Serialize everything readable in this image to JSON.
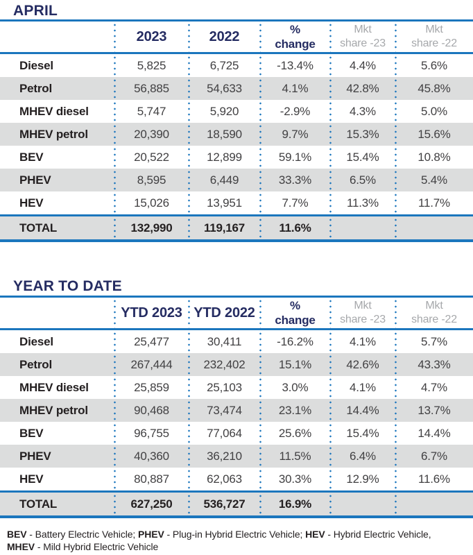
{
  "colors": {
    "navy": "#252c62",
    "blue": "#1b76bd",
    "stripe": "#dcdddd",
    "label": "#231f20",
    "value": "#414042",
    "muted": "#a6a8ab"
  },
  "tables_ui": {
    "april": {
      "title": "APRIL",
      "col1": "2023",
      "col2": "2022"
    },
    "ytd": {
      "title": "YEAR TO DATE",
      "col1": "YTD 2023",
      "col2": "YTD 2022"
    },
    "shared": {
      "pct1": "%",
      "pct2": "change",
      "mkt1": "Mkt",
      "mkt23": "share -23",
      "mkt22": "share -22"
    }
  },
  "chart_data": [
    {
      "type": "table",
      "title": "APRIL",
      "columns": [
        "",
        "2023",
        "2022",
        "% change",
        "Mkt share -23",
        "Mkt share -22"
      ],
      "rows": [
        [
          "Diesel",
          "5,825",
          "6,725",
          "-13.4%",
          "4.4%",
          "5.6%"
        ],
        [
          "Petrol",
          "56,885",
          "54,633",
          "4.1%",
          "42.8%",
          "45.8%"
        ],
        [
          "MHEV diesel",
          "5,747",
          "5,920",
          "-2.9%",
          "4.3%",
          "5.0%"
        ],
        [
          "MHEV petrol",
          "20,390",
          "18,590",
          "9.7%",
          "15.3%",
          "15.6%"
        ],
        [
          "BEV",
          "20,522",
          "12,899",
          "59.1%",
          "15.4%",
          "10.8%"
        ],
        [
          "PHEV",
          "8,595",
          "6,449",
          "33.3%",
          "6.5%",
          "5.4%"
        ],
        [
          "HEV",
          "15,026",
          "13,951",
          "7.7%",
          "11.3%",
          "11.7%"
        ],
        [
          "TOTAL",
          "132,990",
          "119,167",
          "11.6%",
          "",
          ""
        ]
      ]
    },
    {
      "type": "table",
      "title": "YEAR TO DATE",
      "columns": [
        "",
        "YTD 2023",
        "YTD 2022",
        "% change",
        "Mkt share -23",
        "Mkt share -22"
      ],
      "rows": [
        [
          "Diesel",
          "25,477",
          "30,411",
          "-16.2%",
          "4.1%",
          "5.7%"
        ],
        [
          "Petrol",
          "267,444",
          "232,402",
          "15.1%",
          "42.6%",
          "43.3%"
        ],
        [
          "MHEV diesel",
          "25,859",
          "25,103",
          "3.0%",
          "4.1%",
          "4.7%"
        ],
        [
          "MHEV petrol",
          "90,468",
          "73,474",
          "23.1%",
          "14.4%",
          "13.7%"
        ],
        [
          "BEV",
          "96,755",
          "77,064",
          "25.6%",
          "15.4%",
          "14.4%"
        ],
        [
          "PHEV",
          "40,360",
          "36,210",
          "11.5%",
          "6.4%",
          "6.7%"
        ],
        [
          "HEV",
          "80,887",
          "62,063",
          "30.3%",
          "12.9%",
          "11.6%"
        ],
        [
          "TOTAL",
          "627,250",
          "536,727",
          "16.9%",
          "",
          ""
        ]
      ]
    }
  ],
  "footnote": {
    "line1": [
      "BEV",
      " - Battery Electric Vehicle; ",
      "PHEV",
      " - Plug-in Hybrid Electric Vehicle; ",
      "HEV",
      " - Hybrid Electric Vehicle,"
    ],
    "line2": [
      "MHEV",
      " - Mild Hybrid Electric Vehicle"
    ]
  }
}
